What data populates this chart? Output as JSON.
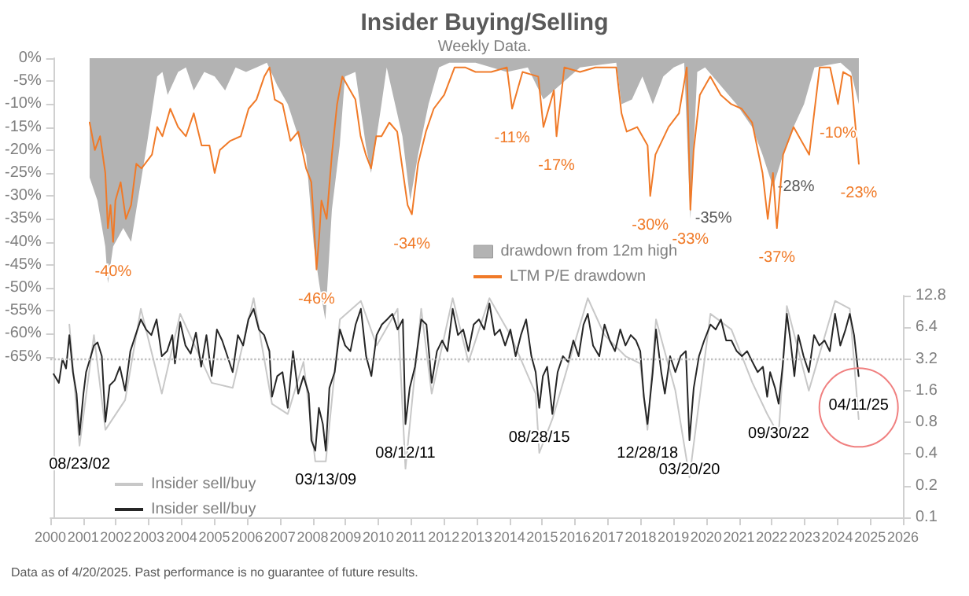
{
  "chart_data": {
    "type": "line",
    "title": "Insider Buying/Selling",
    "subtitle": "Weekly Data.",
    "annotations": [
      "Data as of 4/20/2025. Past performance is no guarantee of future results."
    ],
    "xlim": [
      2000,
      2026
    ],
    "xticks": [
      2000,
      2001,
      2002,
      2003,
      2004,
      2005,
      2006,
      2007,
      2008,
      2009,
      2010,
      2011,
      2012,
      2013,
      2014,
      2015,
      2016,
      2017,
      2018,
      2019,
      2020,
      2021,
      2022,
      2023,
      2024,
      2025,
      2026
    ],
    "ylim": [
      -100,
      0
    ],
    "yticks": [
      {
        "value": 0,
        "label": "0%"
      },
      {
        "value": -5,
        "label": "-5%"
      },
      {
        "value": -10,
        "label": "-10%"
      },
      {
        "value": -15,
        "label": "-15%"
      },
      {
        "value": -20,
        "label": "-20%"
      },
      {
        "value": -25,
        "label": "-25%"
      },
      {
        "value": -30,
        "label": "-30%"
      },
      {
        "value": -35,
        "label": "-35%"
      },
      {
        "value": -40,
        "label": "-40%"
      },
      {
        "value": -45,
        "label": "-45%"
      },
      {
        "value": -50,
        "label": "-50%"
      },
      {
        "value": -55,
        "label": "-55%"
      },
      {
        "value": -60,
        "label": "-60%"
      },
      {
        "value": -65,
        "label": "-65%"
      }
    ],
    "y2lim": [
      0.1,
      12.8
    ],
    "y2ticks": [
      0.1,
      0.2,
      0.4,
      0.8,
      1.6,
      3.2,
      6.4,
      12.8
    ],
    "log": "y2",
    "grid": false,
    "legend": "bottom left",
    "marker": "none",
    "line_style": "solid",
    "ref_lines": [
      {
        "axis": "y2",
        "value": 3.2,
        "line_style": "dotted",
        "color": "#c0c0c0"
      }
    ],
    "series": [
      {
        "type": "area",
        "name": "drawdown from 12m high",
        "color": "#b3b3b3",
        "x": [
          2001.09,
          2001.33,
          2001.57,
          2001.65,
          2001.81,
          2002.12,
          2002.36,
          2002.52,
          2002.84,
          2003.16,
          2003.32,
          2003.48,
          2003.8,
          2004.04,
          2004.28,
          2004.6,
          2004.92,
          2005.24,
          2005.56,
          2005.88,
          2006.2,
          2006.52,
          2006.84,
          2007.16,
          2007.48,
          2007.72,
          2007.96,
          2008.12,
          2008.31,
          2008.51,
          2008.75,
          2008.91,
          2009.23,
          2009.55,
          2009.71,
          2010.03,
          2010.19,
          2010.67,
          2010.91,
          2011.15,
          2011.47,
          2011.79,
          2012.11,
          2012.91,
          2013.87,
          2014.51,
          2014.99,
          2015.31,
          2016.11,
          2017.22,
          2017.38,
          2017.7,
          2018.02,
          2018.34,
          2018.66,
          2018.98,
          2019.3,
          2019.49,
          2019.7,
          2019.94,
          2020.42,
          2020.9,
          2021.38,
          2021.7,
          2022.02,
          2022.33,
          2022.65,
          2022.97,
          2023.29,
          2024.09,
          2024.41,
          2024.65
        ],
        "values": [
          -26,
          -31,
          -41,
          -49,
          -41,
          -37,
          -40,
          -33,
          -19,
          -4,
          -3,
          -8,
          -3,
          -2,
          -7,
          -3,
          -4,
          -7,
          -2,
          -3,
          -2,
          -1,
          -6,
          -10,
          -17,
          -21,
          -41,
          -49,
          -57,
          -33,
          -19,
          -4,
          -3,
          -19,
          -25,
          -10,
          -2,
          -17,
          -31,
          -21,
          -10,
          -2,
          -1,
          -1,
          -3,
          -2,
          -9,
          -7,
          -2,
          -1,
          -10,
          -9,
          -4,
          -10,
          -4,
          -2,
          -1,
          -35,
          -3,
          -2,
          -6,
          -10,
          -15,
          -21,
          -28,
          -21,
          -15,
          -10,
          -2,
          -1,
          -3,
          -10
        ],
        "value_labels": [
          null,
          null,
          null,
          null,
          null,
          null,
          null,
          null,
          null,
          null,
          null,
          null,
          null,
          null,
          null,
          null,
          null,
          null,
          null,
          null,
          null,
          null,
          null,
          null,
          null,
          null,
          null,
          null,
          null,
          null,
          null,
          null,
          null,
          null,
          null,
          null,
          null,
          null,
          null,
          null,
          null,
          null,
          null,
          null,
          null,
          null,
          null,
          null,
          null,
          null,
          null,
          null,
          null,
          null,
          null,
          null,
          null,
          "-35%",
          null,
          null,
          null,
          null,
          null,
          null,
          "-28%",
          null,
          null,
          null,
          null,
          null,
          null,
          null
        ]
      },
      {
        "name": "LTM P/E drawdown",
        "color": "#f07a28",
        "x": [
          2001.09,
          2001.25,
          2001.41,
          2001.57,
          2001.65,
          2001.73,
          2001.81,
          2001.88,
          2002.04,
          2002.2,
          2002.36,
          2002.52,
          2002.68,
          2003.0,
          2003.16,
          2003.32,
          2003.56,
          2003.8,
          2004.04,
          2004.28,
          2004.52,
          2004.76,
          2004.92,
          2005.08,
          2005.4,
          2005.72,
          2005.96,
          2006.2,
          2006.44,
          2006.6,
          2006.76,
          2007.0,
          2007.24,
          2007.48,
          2007.72,
          2007.88,
          2007.96,
          2008.04,
          2008.12,
          2008.19,
          2008.35,
          2008.51,
          2008.67,
          2008.83,
          2008.99,
          2009.23,
          2009.39,
          2009.55,
          2009.71,
          2009.87,
          2010.03,
          2010.27,
          2010.51,
          2010.83,
          2010.96,
          2011.15,
          2011.39,
          2011.63,
          2011.95,
          2012.27,
          2012.59,
          2012.91,
          2013.39,
          2013.87,
          2014.03,
          2014.35,
          2014.83,
          2014.99,
          2015.31,
          2015.39,
          2015.63,
          2016.11,
          2016.58,
          2017.22,
          2017.38,
          2017.54,
          2017.86,
          2018.18,
          2018.26,
          2018.42,
          2018.82,
          2019.14,
          2019.38,
          2019.49,
          2019.59,
          2019.78,
          2020.1,
          2020.42,
          2020.74,
          2021.06,
          2021.38,
          2021.7,
          2021.86,
          2022.02,
          2022.14,
          2022.33,
          2022.65,
          2023.13,
          2023.45,
          2023.77,
          2024.01,
          2024.17,
          2024.41,
          2024.65
        ],
        "values": [
          -14,
          -20,
          -17,
          -25,
          -37,
          -32,
          -40,
          -31,
          -27,
          -35,
          -32,
          -23,
          -24,
          -21,
          -15,
          -17,
          -11,
          -15,
          -17,
          -12,
          -19,
          -19,
          -25,
          -20,
          -18,
          -17,
          -11,
          -9,
          -4,
          -2,
          -9,
          -10,
          -18,
          -16,
          -24,
          -27,
          -36,
          -46,
          -39,
          -31,
          -35,
          -21,
          -10,
          -4,
          -6,
          -9,
          -17,
          -21,
          -24,
          -17,
          -17,
          -14,
          -16,
          -32,
          -34,
          -23,
          -16,
          -11,
          -8,
          -2,
          -2,
          -3,
          -3,
          -2,
          -11,
          -3,
          -4,
          -15,
          -7,
          -17,
          -2,
          -3,
          -2,
          -2,
          -12,
          -16,
          -15,
          -19,
          -30,
          -21,
          -15,
          -12,
          -2,
          -33,
          -20,
          -8,
          -4,
          -8,
          -10,
          -11,
          -14,
          -25,
          -35,
          -25,
          -37,
          -21,
          -15,
          -21,
          -2,
          -2,
          -10,
          -3,
          -4,
          -23
        ],
        "value_labels": [
          null,
          null,
          null,
          null,
          null,
          null,
          "-40%",
          null,
          null,
          null,
          null,
          null,
          null,
          null,
          null,
          null,
          null,
          null,
          null,
          null,
          null,
          null,
          null,
          null,
          null,
          null,
          null,
          null,
          null,
          null,
          null,
          null,
          null,
          null,
          null,
          null,
          null,
          "-46%",
          null,
          null,
          null,
          null,
          null,
          null,
          null,
          null,
          null,
          null,
          null,
          null,
          null,
          null,
          null,
          null,
          "-34%",
          null,
          null,
          null,
          null,
          null,
          null,
          null,
          null,
          null,
          "-11%",
          null,
          null,
          null,
          null,
          "-17%",
          null,
          null,
          null,
          null,
          null,
          null,
          null,
          null,
          "-30%",
          null,
          null,
          null,
          null,
          "-33%",
          null,
          null,
          null,
          null,
          null,
          null,
          null,
          null,
          null,
          null,
          "-37%",
          null,
          null,
          null,
          null,
          null,
          "-10%",
          null,
          null,
          "-23%"
        ]
      },
      {
        "axis": "y2",
        "name": "Insider sell/buy",
        "color": "#c8c8c8",
        "x": [
          2000.58,
          2000.89,
          2001.33,
          2001.68,
          2002.28,
          2002.76,
          2003.4,
          2003.96,
          2004.92,
          2005.56,
          2006.2,
          2006.76,
          2007.24,
          2007.72,
          2008.08,
          2008.4,
          2008.83,
          2009.47,
          2009.95,
          2010.59,
          2010.83,
          2011.31,
          2011.63,
          2012.27,
          2012.75,
          2013.39,
          2014.03,
          2014.8,
          2014.91,
          2015.31,
          2016.39,
          2016.9,
          2017.54,
          2017.99,
          2018.21,
          2018.47,
          2019.06,
          2019.49,
          2020.13,
          2020.77,
          2021.41,
          2021.86,
          2022.21,
          2022.46,
          2023.13,
          2023.93,
          2024.38,
          2024.65
        ],
        "values": [
          6.8,
          0.48,
          5.4,
          0.68,
          1.3,
          9.6,
          1.5,
          8.6,
          1.9,
          1.7,
          12.1,
          1.2,
          0.96,
          3.0,
          0.34,
          0.34,
          7.6,
          11.4,
          4.3,
          9.6,
          0.29,
          9.6,
          1.5,
          12.1,
          3.0,
          12.1,
          5.4,
          1.5,
          0.41,
          0.86,
          12.1,
          5.4,
          3.4,
          2.9,
          0.68,
          7.6,
          1.6,
          0.24,
          8.6,
          6.1,
          1.9,
          0.96,
          0.61,
          10.2,
          1.6,
          11.4,
          9.6,
          0.86
        ]
      },
      {
        "axis": "y2",
        "name": "Insider sell/buy",
        "color": "#262626",
        "x": [
          2000.1,
          2000.26,
          2000.37,
          2000.48,
          2000.58,
          2000.69,
          2000.8,
          2000.89,
          2001.01,
          2001.09,
          2001.21,
          2001.33,
          2001.44,
          2001.57,
          2001.68,
          2001.81,
          2001.96,
          2002.12,
          2002.28,
          2002.44,
          2002.6,
          2002.76,
          2002.92,
          2003.08,
          2003.24,
          2003.4,
          2003.56,
          2003.72,
          2003.8,
          2003.96,
          2004.12,
          2004.28,
          2004.44,
          2004.6,
          2004.76,
          2004.92,
          2005.08,
          2005.24,
          2005.4,
          2005.56,
          2005.72,
          2005.88,
          2006.04,
          2006.2,
          2006.36,
          2006.52,
          2006.68,
          2006.76,
          2006.92,
          2007.08,
          2007.24,
          2007.4,
          2007.56,
          2007.72,
          2007.88,
          2007.96,
          2008.08,
          2008.19,
          2008.31,
          2008.4,
          2008.51,
          2008.67,
          2008.83,
          2008.99,
          2009.15,
          2009.31,
          2009.47,
          2009.63,
          2009.79,
          2009.95,
          2010.11,
          2010.27,
          2010.43,
          2010.59,
          2010.75,
          2010.83,
          2010.96,
          2011.12,
          2011.31,
          2011.47,
          2011.63,
          2011.79,
          2011.95,
          2012.11,
          2012.27,
          2012.43,
          2012.59,
          2012.75,
          2012.91,
          2013.07,
          2013.23,
          2013.39,
          2013.55,
          2013.71,
          2013.87,
          2014.03,
          2014.19,
          2014.35,
          2014.51,
          2014.67,
          2014.8,
          2014.91,
          2015.02,
          2015.15,
          2015.31,
          2015.47,
          2015.63,
          2015.79,
          2015.95,
          2016.11,
          2016.26,
          2016.39,
          2016.55,
          2016.74,
          2016.9,
          2017.06,
          2017.22,
          2017.38,
          2017.54,
          2017.7,
          2017.86,
          2017.99,
          2018.1,
          2018.21,
          2018.37,
          2018.47,
          2018.63,
          2018.74,
          2018.9,
          2019.06,
          2019.22,
          2019.38,
          2019.49,
          2019.62,
          2019.78,
          2019.94,
          2020.13,
          2020.29,
          2020.45,
          2020.61,
          2020.77,
          2020.93,
          2021.09,
          2021.25,
          2021.41,
          2021.57,
          2021.73,
          2021.86,
          2021.95,
          2022.1,
          2022.21,
          2022.33,
          2022.46,
          2022.57,
          2022.69,
          2022.81,
          2022.97,
          2023.13,
          2023.29,
          2023.45,
          2023.61,
          2023.77,
          2023.93,
          2024.09,
          2024.25,
          2024.38,
          2024.51,
          2024.65
        ],
        "values": [
          2.3,
          1.9,
          3.2,
          2.6,
          5.4,
          2.4,
          1.5,
          0.61,
          1.5,
          2.4,
          3.2,
          4.3,
          4.6,
          3.4,
          0.81,
          1.8,
          2.0,
          2.7,
          1.6,
          3.8,
          5.4,
          7.6,
          6.1,
          5.4,
          7.6,
          3.4,
          3.8,
          5.4,
          2.9,
          7.2,
          4.3,
          3.6,
          5.7,
          2.7,
          5.4,
          2.2,
          6.1,
          4.8,
          3.4,
          2.4,
          5.4,
          4.3,
          7.6,
          9.6,
          6.1,
          5.4,
          3.8,
          1.4,
          2.2,
          2.4,
          1.1,
          3.8,
          1.5,
          2.2,
          1.5,
          0.54,
          0.43,
          1.1,
          0.77,
          0.43,
          1.7,
          2.4,
          6.1,
          4.3,
          3.8,
          6.8,
          9.6,
          3.4,
          2.2,
          5.4,
          6.8,
          7.6,
          8.6,
          6.1,
          7.6,
          0.77,
          1.7,
          2.7,
          7.6,
          6.8,
          1.9,
          3.8,
          4.8,
          3.8,
          9.6,
          5.4,
          6.1,
          3.8,
          6.8,
          7.6,
          6.1,
          10.8,
          5.4,
          6.1,
          4.3,
          6.1,
          3.4,
          5.4,
          7.6,
          3.4,
          2.4,
          1.1,
          2.2,
          2.7,
          0.96,
          2.4,
          3.4,
          3.0,
          4.8,
          3.4,
          6.8,
          8.6,
          4.3,
          3.4,
          6.8,
          4.8,
          3.8,
          6.1,
          4.3,
          5.4,
          4.8,
          3.8,
          1.4,
          0.77,
          2.4,
          6.1,
          2.4,
          1.5,
          3.4,
          2.4,
          3.4,
          3.8,
          0.54,
          1.7,
          3.4,
          4.8,
          6.8,
          6.1,
          7.6,
          4.8,
          4.8,
          3.8,
          3.4,
          3.8,
          3.0,
          2.4,
          2.7,
          1.4,
          2.4,
          1.7,
          1.2,
          2.7,
          8.6,
          4.8,
          2.2,
          5.4,
          3.4,
          2.4,
          5.4,
          4.3,
          4.8,
          3.8,
          8.6,
          4.3,
          6.1,
          8.6,
          5.4,
          2.2
        ],
        "value_labels": [
          null,
          null,
          null,
          null,
          null,
          null,
          null,
          "08/23/02",
          null,
          null,
          null,
          null,
          null,
          null,
          null,
          null,
          null,
          null,
          null,
          null,
          null,
          null,
          null,
          null,
          null,
          null,
          null,
          null,
          null,
          null,
          null,
          null,
          null,
          null,
          null,
          null,
          null,
          null,
          null,
          null,
          null,
          null,
          null,
          null,
          null,
          null,
          null,
          null,
          null,
          null,
          null,
          null,
          null,
          null,
          null,
          null,
          null,
          null,
          null,
          "03/13/09",
          null,
          null,
          null,
          null,
          null,
          null,
          null,
          null,
          null,
          null,
          null,
          null,
          null,
          null,
          null,
          "08/12/11",
          null,
          null,
          null,
          null,
          null,
          null,
          null,
          null,
          null,
          null,
          null,
          null,
          null,
          null,
          null,
          null,
          null,
          null,
          null,
          null,
          null,
          null,
          null,
          null,
          null,
          "08/28/15",
          null,
          null,
          null,
          null,
          null,
          null,
          null,
          null,
          null,
          null,
          null,
          null,
          null,
          null,
          null,
          null,
          null,
          null,
          null,
          null,
          null,
          "12/28/18",
          null,
          null,
          null,
          null,
          null,
          null,
          null,
          null,
          "03/20/20",
          null,
          null,
          null,
          null,
          null,
          null,
          null,
          null,
          null,
          null,
          null,
          null,
          null,
          null,
          null,
          null,
          null,
          "09/30/22",
          null,
          null,
          null,
          null,
          null,
          null,
          null,
          null,
          null,
          null,
          null,
          null,
          null,
          null,
          null,
          null,
          "04/11/25"
        ]
      }
    ]
  }
}
